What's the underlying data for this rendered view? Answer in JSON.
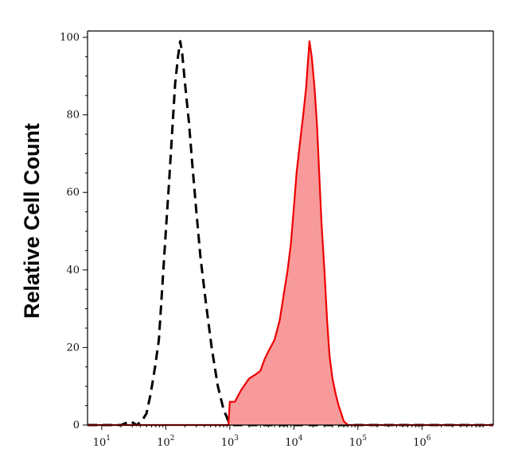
{
  "chart_data": {
    "type": "area",
    "title": "",
    "ylabel": "Relative Cell Count",
    "xlabel": "",
    "xscale": "log",
    "xlim": [
      6,
      13000000
    ],
    "ylim": [
      0,
      100
    ],
    "grid": false,
    "x_tick_labels": [
      {
        "base": "10",
        "exp": "1",
        "value": 10
      },
      {
        "base": "10",
        "exp": "2",
        "value": 100
      },
      {
        "base": "10",
        "exp": "3",
        "value": 1000
      },
      {
        "base": "10",
        "exp": "4",
        "value": 10000
      },
      {
        "base": "10",
        "exp": "5",
        "value": 100000
      },
      {
        "base": "10",
        "exp": "6",
        "value": 1000000
      }
    ],
    "y_ticks": [
      0,
      20,
      40,
      60,
      80,
      100
    ],
    "series": [
      {
        "color": "#000000",
        "style": "dashed",
        "fill": "none",
        "points": [
          [
            6,
            0
          ],
          [
            20,
            0
          ],
          [
            28,
            1
          ],
          [
            35,
            0
          ],
          [
            42,
            1
          ],
          [
            50,
            3
          ],
          [
            58,
            8
          ],
          [
            68,
            15
          ],
          [
            78,
            22
          ],
          [
            90,
            38
          ],
          [
            100,
            50
          ],
          [
            112,
            62
          ],
          [
            125,
            75
          ],
          [
            140,
            88
          ],
          [
            155,
            95
          ],
          [
            168,
            99
          ],
          [
            180,
            96
          ],
          [
            200,
            88
          ],
          [
            230,
            78
          ],
          [
            260,
            67
          ],
          [
            300,
            55
          ],
          [
            350,
            43
          ],
          [
            420,
            32
          ],
          [
            520,
            20
          ],
          [
            650,
            10
          ],
          [
            800,
            4
          ],
          [
            950,
            1
          ],
          [
            1100,
            0
          ],
          [
            13000000,
            0
          ]
        ]
      },
      {
        "color": "#ee0000",
        "style": "solid",
        "fill": "#f99a9a",
        "points": [
          [
            6,
            0
          ],
          [
            950,
            0
          ],
          [
            1000,
            6
          ],
          [
            1200,
            6
          ],
          [
            1500,
            9
          ],
          [
            2000,
            12
          ],
          [
            2500,
            13
          ],
          [
            3000,
            14
          ],
          [
            3500,
            17
          ],
          [
            4000,
            19
          ],
          [
            5000,
            22
          ],
          [
            6000,
            27
          ],
          [
            7000,
            34
          ],
          [
            8000,
            40
          ],
          [
            9000,
            47
          ],
          [
            10000,
            56
          ],
          [
            11000,
            65
          ],
          [
            12500,
            73
          ],
          [
            14000,
            80
          ],
          [
            15500,
            87
          ],
          [
            16500,
            93
          ],
          [
            17500,
            99
          ],
          [
            19000,
            95
          ],
          [
            21000,
            87
          ],
          [
            23000,
            77
          ],
          [
            25000,
            64
          ],
          [
            27000,
            52
          ],
          [
            30000,
            40
          ],
          [
            33000,
            27
          ],
          [
            36000,
            18
          ],
          [
            40000,
            12
          ],
          [
            45000,
            8
          ],
          [
            50000,
            5
          ],
          [
            55000,
            3
          ],
          [
            60000,
            1
          ],
          [
            70000,
            0
          ],
          [
            13000000,
            0
          ]
        ]
      }
    ]
  }
}
